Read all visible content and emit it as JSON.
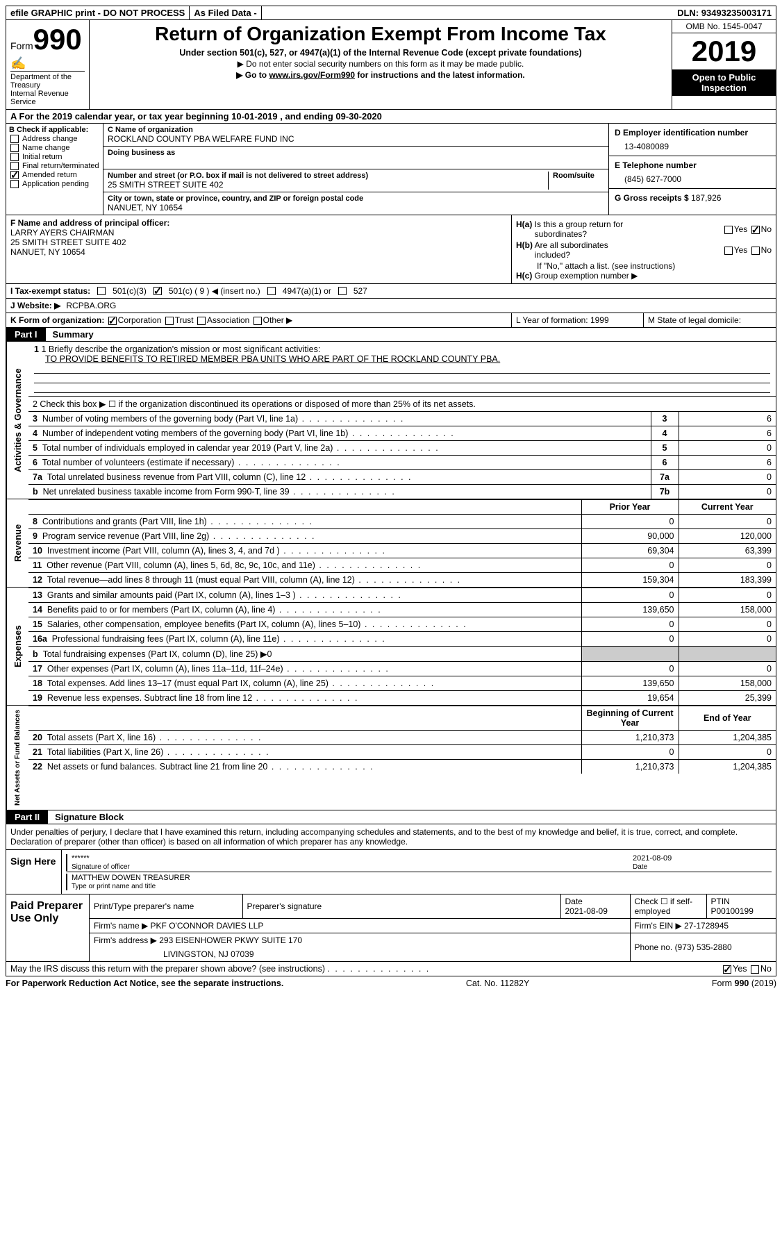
{
  "topbar": {
    "efile": "efile GRAPHIC print - DO NOT PROCESS",
    "asfiled": "As Filed Data -",
    "dln_label": "DLN:",
    "dln": "93493235003171"
  },
  "header": {
    "form_prefix": "Form",
    "form_number": "990",
    "dept": "Department of the Treasury\nInternal Revenue Service",
    "title": "Return of Organization Exempt From Income Tax",
    "subtitle": "Under section 501(c), 527, or 4947(a)(1) of the Internal Revenue Code (except private foundations)",
    "line1": "▶ Do not enter social security numbers on this form as it may be made public.",
    "line2_prefix": "▶ Go to ",
    "line2_link": "www.irs.gov/Form990",
    "line2_suffix": " for instructions and the latest information.",
    "omb": "OMB No. 1545-0047",
    "year": "2019",
    "public": "Open to Public Inspection"
  },
  "row_a": "A   For the 2019 calendar year, or tax year beginning 10-01-2019    , and ending 09-30-2020",
  "col_b": {
    "label": "B Check if applicable:",
    "items": [
      "Address change",
      "Name change",
      "Initial return",
      "Final return/terminated",
      "Amended return",
      "Application pending"
    ],
    "checked_idx": 4
  },
  "col_c": {
    "name_lbl": "C Name of organization",
    "name": "ROCKLAND COUNTY PBA WELFARE FUND INC",
    "dba_lbl": "Doing business as",
    "addr_lbl": "Number and street (or P.O. box if mail is not delivered to street address)",
    "room_lbl": "Room/suite",
    "addr": "25 SMITH STREET SUITE 402",
    "city_lbl": "City or town, state or province, country, and ZIP or foreign postal code",
    "city": "NANUET, NY  10654"
  },
  "col_de": {
    "d_lbl": "D Employer identification number",
    "d_val": "13-4080089",
    "e_lbl": "E Telephone number",
    "e_val": "(845) 627-7000",
    "g_lbl": "G Gross receipts $",
    "g_val": "187,926"
  },
  "fh": {
    "f_lbl": "F  Name and address of principal officer:",
    "f_val": "LARRY AYERS CHAIRMAN\n25 SMITH STREET SUITE 402\nNANUET, NY  10654",
    "ha_lbl": "H(a)  Is this a group return for subordinates?",
    "hb_lbl": "H(b)  Are all subordinates included?",
    "hb_note": "If \"No,\" attach a list. (see instructions)",
    "hc_lbl": "H(c)  Group exemption number ▶"
  },
  "row_i": {
    "label": "I   Tax-exempt status:",
    "opts": [
      "501(c)(3)",
      "501(c) ( 9 ) ◀ (insert no.)",
      "4947(a)(1) or",
      "527"
    ],
    "checked_idx": 1
  },
  "row_j": {
    "label": "J   Website: ▶",
    "val": "RCPBA.ORG"
  },
  "row_k": {
    "label": "K Form of organization:",
    "opts": [
      "Corporation",
      "Trust",
      "Association",
      "Other ▶"
    ],
    "checked_idx": 0
  },
  "row_l": {
    "l_lbl": "L Year of formation: 1999",
    "m_lbl": "M State of legal domicile:"
  },
  "part1": {
    "tab": "Part I",
    "label": "Summary"
  },
  "governance": {
    "vlabel": "Activities & Governance",
    "line1_lbl": "1 Briefly describe the organization's mission or most significant activities:",
    "line1_val": "TO PROVIDE BENEFITS TO RETIRED MEMBER PBA UNITS WHO ARE PART OF THE ROCKLAND COUNTY PBA.",
    "line2": "2   Check this box ▶ ☐ if the organization discontinued its operations or disposed of more than 25% of its net assets.",
    "rows": [
      {
        "n": "3",
        "t": "Number of voting members of the governing body (Part VI, line 1a)",
        "box": "3",
        "v": "6"
      },
      {
        "n": "4",
        "t": "Number of independent voting members of the governing body (Part VI, line 1b)",
        "box": "4",
        "v": "6"
      },
      {
        "n": "5",
        "t": "Total number of individuals employed in calendar year 2019 (Part V, line 2a)",
        "box": "5",
        "v": "0"
      },
      {
        "n": "6",
        "t": "Total number of volunteers (estimate if necessary)",
        "box": "6",
        "v": "6"
      },
      {
        "n": "7a",
        "t": "Total unrelated business revenue from Part VIII, column (C), line 12",
        "box": "7a",
        "v": "0"
      },
      {
        "n": "b",
        "t": "Net unrelated business taxable income from Form 990-T, line 39",
        "box": "7b",
        "v": "0"
      }
    ]
  },
  "revenue": {
    "vlabel": "Revenue",
    "hdr_prior": "Prior Year",
    "hdr_curr": "Current Year",
    "rows": [
      {
        "n": "8",
        "t": "Contributions and grants (Part VIII, line 1h)",
        "p": "0",
        "c": "0"
      },
      {
        "n": "9",
        "t": "Program service revenue (Part VIII, line 2g)",
        "p": "90,000",
        "c": "120,000"
      },
      {
        "n": "10",
        "t": "Investment income (Part VIII, column (A), lines 3, 4, and 7d )",
        "p": "69,304",
        "c": "63,399"
      },
      {
        "n": "11",
        "t": "Other revenue (Part VIII, column (A), lines 5, 6d, 8c, 9c, 10c, and 11e)",
        "p": "0",
        "c": "0"
      },
      {
        "n": "12",
        "t": "Total revenue—add lines 8 through 11 (must equal Part VIII, column (A), line 12)",
        "p": "159,304",
        "c": "183,399"
      }
    ]
  },
  "expenses": {
    "vlabel": "Expenses",
    "rows": [
      {
        "n": "13",
        "t": "Grants and similar amounts paid (Part IX, column (A), lines 1–3 )",
        "p": "0",
        "c": "0"
      },
      {
        "n": "14",
        "t": "Benefits paid to or for members (Part IX, column (A), line 4)",
        "p": "139,650",
        "c": "158,000"
      },
      {
        "n": "15",
        "t": "Salaries, other compensation, employee benefits (Part IX, column (A), lines 5–10)",
        "p": "0",
        "c": "0"
      },
      {
        "n": "16a",
        "t": "Professional fundraising fees (Part IX, column (A), line 11e)",
        "p": "0",
        "c": "0"
      },
      {
        "n": "b",
        "t": "Total fundraising expenses (Part IX, column (D), line 25) ▶0",
        "p": "",
        "c": "",
        "grey": true
      },
      {
        "n": "17",
        "t": "Other expenses (Part IX, column (A), lines 11a–11d, 11f–24e)",
        "p": "0",
        "c": "0"
      },
      {
        "n": "18",
        "t": "Total expenses. Add lines 13–17 (must equal Part IX, column (A), line 25)",
        "p": "139,650",
        "c": "158,000"
      },
      {
        "n": "19",
        "t": "Revenue less expenses. Subtract line 18 from line 12",
        "p": "19,654",
        "c": "25,399"
      }
    ]
  },
  "netassets": {
    "vlabel": "Net Assets or Fund Balances",
    "hdr_beg": "Beginning of Current Year",
    "hdr_end": "End of Year",
    "rows": [
      {
        "n": "20",
        "t": "Total assets (Part X, line 16)",
        "p": "1,210,373",
        "c": "1,204,385"
      },
      {
        "n": "21",
        "t": "Total liabilities (Part X, line 26)",
        "p": "0",
        "c": "0"
      },
      {
        "n": "22",
        "t": "Net assets or fund balances. Subtract line 21 from line 20",
        "p": "1,210,373",
        "c": "1,204,385"
      }
    ]
  },
  "part2": {
    "tab": "Part II",
    "label": "Signature Block"
  },
  "sig_text": "Under penalties of perjury, I declare that I have examined this return, including accompanying schedules and statements, and to the best of my knowledge and belief, it is true, correct, and complete. Declaration of preparer (other than officer) is based on all information of which preparer has any knowledge.",
  "sign": {
    "label": "Sign Here",
    "stars": "******",
    "sig_lbl": "Signature of officer",
    "date": "2021-08-09",
    "date_lbl": "Date",
    "name": "MATTHEW DOWEN TREASURER",
    "name_lbl": "Type or print name and title"
  },
  "prep": {
    "label": "Paid Preparer Use Only",
    "h1": "Print/Type preparer's name",
    "h2": "Preparer's signature",
    "h3_lbl": "Date",
    "h3_val": "2021-08-09",
    "h4": "Check ☐ if self-employed",
    "h5_lbl": "PTIN",
    "h5_val": "P00100199",
    "firm_name_lbl": "Firm's name    ▶",
    "firm_name": "PKF O'CONNOR DAVIES LLP",
    "firm_ein_lbl": "Firm's EIN ▶",
    "firm_ein": "27-1728945",
    "firm_addr_lbl": "Firm's address ▶",
    "firm_addr": "293 EISENHOWER PKWY SUITE 170",
    "firm_city": "LIVINGSTON, NJ  07039",
    "phone_lbl": "Phone no.",
    "phone": "(973) 535-2880"
  },
  "footer": {
    "may": "May the IRS discuss this return with the preparer shown above? (see instructions)",
    "paperwork": "For Paperwork Reduction Act Notice, see the separate instructions.",
    "cat": "Cat. No. 11282Y",
    "form": "Form 990 (2019)"
  }
}
